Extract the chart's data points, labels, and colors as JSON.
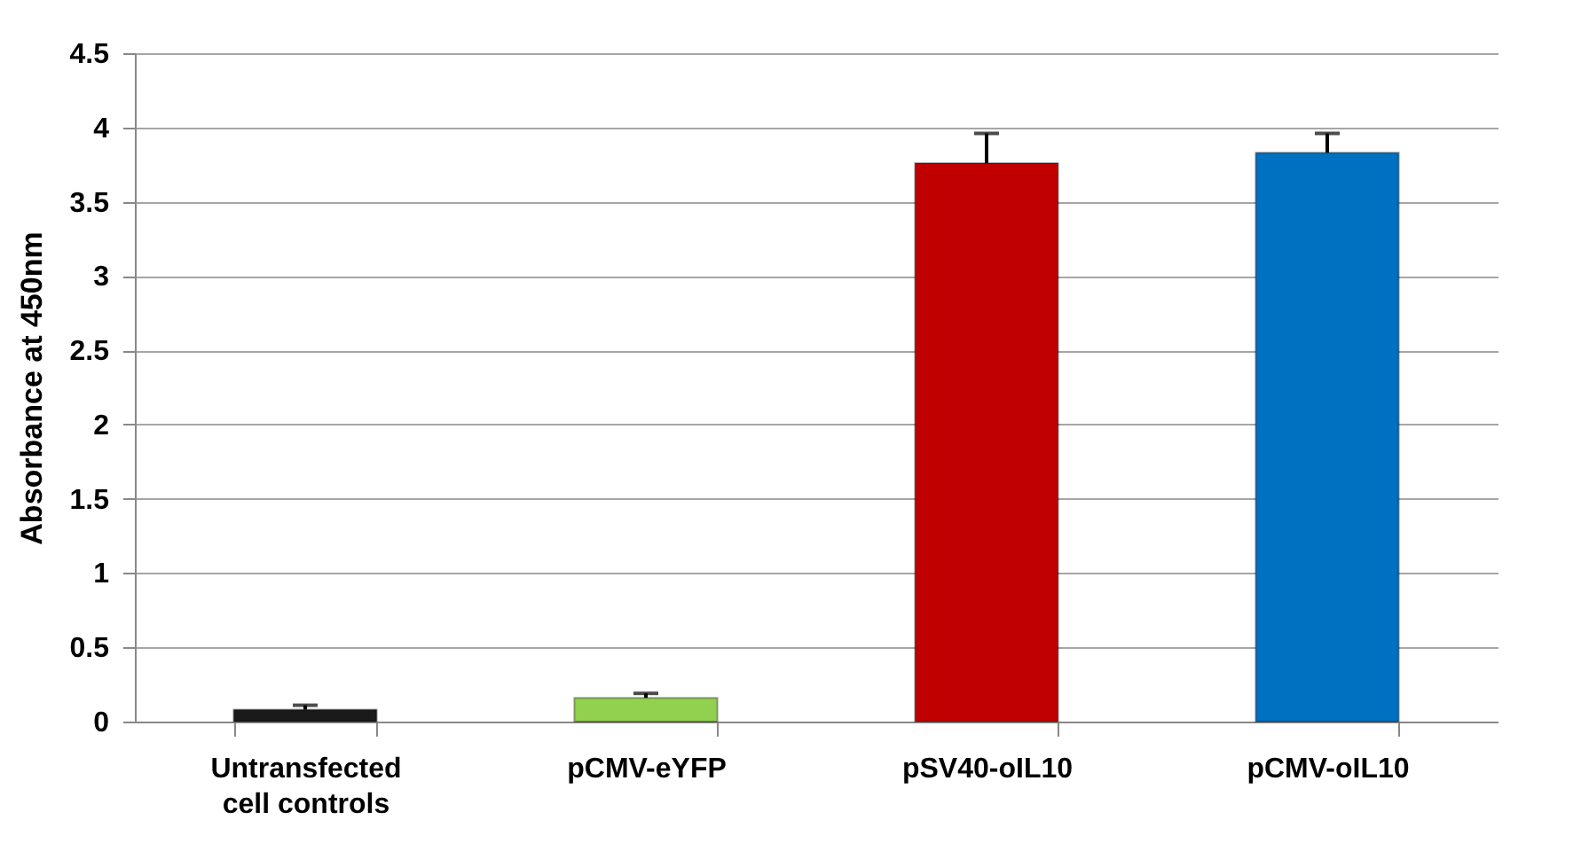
{
  "chart_data": {
    "type": "bar",
    "ylabel": "Absorbance at 450nm",
    "categories": [
      "Untransfected cell controls",
      "pCMV-eYFP",
      "pSV40-oIL10",
      "pCMV-oIL10"
    ],
    "values": [
      0.08,
      0.16,
      3.76,
      3.83
    ],
    "errors": [
      [
        0.08,
        0.11
      ],
      [
        0.16,
        0.19
      ],
      [
        3.76,
        3.96
      ],
      [
        3.83,
        3.96
      ]
    ],
    "colors": [
      "#1a1a1a",
      "#92d050",
      "#c00000",
      "#0070c0"
    ],
    "ylim": [
      0,
      4.5
    ],
    "yticks": [
      0,
      0.5,
      1,
      1.5,
      2,
      2.5,
      3,
      3.5,
      4,
      4.5
    ],
    "grid": "y"
  }
}
